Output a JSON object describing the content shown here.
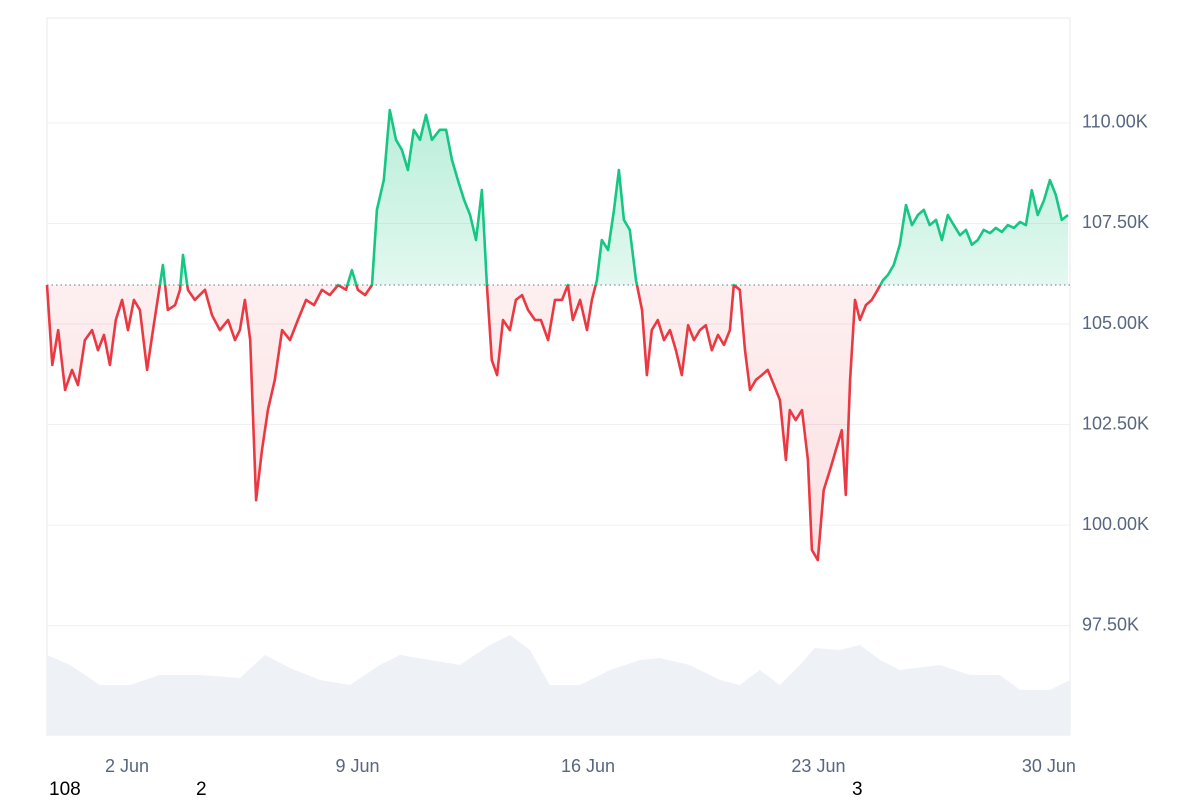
{
  "chart_data": {
    "type": "line",
    "x": [
      -0.43,
      -0.27,
      -0.09,
      0.12,
      0.33,
      0.51,
      0.72,
      0.94,
      1.12,
      1.3,
      1.48,
      1.66,
      1.85,
      2.03,
      2.21,
      2.39,
      2.61,
      2.79,
      3.0,
      3.09,
      3.24,
      3.46,
      3.61,
      3.7,
      3.85,
      4.06,
      4.37,
      4.58,
      4.82,
      5.07,
      5.28,
      5.43,
      5.58,
      5.74,
      5.92,
      6.1,
      6.28,
      6.49,
      6.71,
      6.95,
      7.19,
      7.44,
      7.68,
      7.92,
      8.16,
      8.41,
      8.65,
      8.83,
      9.01,
      9.23,
      9.44,
      9.59,
      9.8,
      9.98,
      10.17,
      10.35,
      10.53,
      10.71,
      10.9,
      11.08,
      11.26,
      11.5,
      11.69,
      11.87,
      12.05,
      12.24,
      12.42,
      12.6,
      12.78,
      12.93,
      13.08,
      13.24,
      13.42,
      13.63,
      13.81,
      14.0,
      14.18,
      14.39,
      14.57,
      14.79,
      15.0,
      15.21,
      15.39,
      15.54,
      15.76,
      15.97,
      16.12,
      16.27,
      16.42,
      16.61,
      16.79,
      16.94,
      17.09,
      17.27,
      17.46,
      17.64,
      17.79,
      17.94,
      18.12,
      18.31,
      18.49,
      18.67,
      18.85,
      19.04,
      19.22,
      19.4,
      19.58,
      19.76,
      19.95,
      20.13,
      20.31,
      20.43,
      20.61,
      20.77,
      20.92,
      21.1,
      21.28,
      21.46,
      21.65,
      21.83,
      22.01,
      22.13,
      22.31,
      22.5,
      22.68,
      22.8,
      22.98,
      23.16,
      23.35,
      23.53,
      23.71,
      23.83,
      23.96,
      24.11,
      24.26,
      24.44,
      24.62,
      24.8,
      24.96,
      25.11,
      25.29,
      25.47,
      25.66,
      25.84,
      26.02,
      26.2,
      26.38,
      26.57,
      26.75,
      26.93,
      27.11,
      27.3,
      27.48,
      27.66,
      27.84,
      28.02,
      28.21,
      28.39,
      28.57,
      28.75,
      28.94,
      29.12,
      29.3,
      29.48,
      29.66,
      29.85,
      30.03,
      30.21,
      30.39,
      30.58
    ],
    "values": [
      105970,
      103980,
      104850,
      103360,
      103860,
      103480,
      104600,
      104850,
      104350,
      104730,
      103980,
      105100,
      105600,
      104850,
      105600,
      105350,
      103860,
      104850,
      105970,
      106470,
      105350,
      105470,
      105850,
      106720,
      105850,
      105600,
      105850,
      105220,
      104850,
      105100,
      104600,
      104850,
      105600,
      104600,
      100620,
      101870,
      102860,
      103610,
      104850,
      104600,
      105100,
      105600,
      105470,
      105850,
      105720,
      105970,
      105850,
      106340,
      105850,
      105720,
      105970,
      107840,
      108580,
      110320,
      109580,
      109330,
      108830,
      109830,
      109580,
      110200,
      109580,
      109830,
      109830,
      109080,
      108580,
      108080,
      107710,
      107090,
      108330,
      105970,
      104100,
      103730,
      105100,
      104850,
      105600,
      105720,
      105350,
      105100,
      105100,
      104600,
      105600,
      105600,
      105970,
      105100,
      105600,
      104850,
      105600,
      106090,
      107090,
      106840,
      107840,
      108830,
      107590,
      107340,
      106090,
      105350,
      103730,
      104850,
      105100,
      104600,
      104850,
      104350,
      103730,
      104970,
      104600,
      104850,
      104970,
      104350,
      104730,
      104480,
      104850,
      105970,
      105850,
      104350,
      103360,
      103610,
      103730,
      103860,
      103480,
      103110,
      101620,
      102860,
      102610,
      102860,
      101620,
      99380,
      99130,
      100870,
      101370,
      101870,
      102360,
      100750,
      103610,
      105600,
      105100,
      105470,
      105600,
      105850,
      106090,
      106220,
      106470,
      106970,
      107960,
      107460,
      107710,
      107840,
      107460,
      107590,
      107090,
      107710,
      107460,
      107210,
      107340,
      106970,
      107090,
      107340,
      107260,
      107390,
      107290,
      107460,
      107390,
      107540,
      107460,
      108330,
      107710,
      108080,
      108580,
      108210,
      107590,
      107710
    ],
    "baseline": 105970,
    "up_color": "#16c784",
    "down_color": "#ea3943",
    "volume": {
      "color": "#eef1f5",
      "x": [
        -0.43,
        0.27,
        1.18,
        2.09,
        3.0,
        4.22,
        5.43,
        6.19,
        6.95,
        7.86,
        8.77,
        9.68,
        10.29,
        11.2,
        12.11,
        13.02,
        13.63,
        14.24,
        14.84,
        15.76,
        16.67,
        17.58,
        18.18,
        19.09,
        20.01,
        20.61,
        21.22,
        21.83,
        22.44,
        22.89,
        23.65,
        24.26,
        24.87,
        25.47,
        26.69,
        27.6,
        28.51,
        29.12,
        30.03,
        30.64
      ],
      "values": [
        80,
        70,
        50,
        50,
        60,
        60,
        57,
        80,
        67,
        55,
        50,
        70,
        80,
        75,
        70,
        90,
        100,
        85,
        50,
        50,
        65,
        75,
        77,
        70,
        55,
        50,
        65,
        50,
        70,
        87,
        85,
        90,
        75,
        65,
        70,
        60,
        60,
        45,
        45,
        55
      ]
    },
    "xlim": [
      -0.43,
      30.64
    ],
    "xticks": [
      {
        "value": 2,
        "label": "2 Jun"
      },
      {
        "value": 9,
        "label": "9 Jun"
      },
      {
        "value": 16,
        "label": "16 Jun"
      },
      {
        "value": 23,
        "label": "23 Jun"
      },
      {
        "value": 30,
        "label": "30 Jun"
      }
    ],
    "ylim": [
      94780,
      112610
    ],
    "yticks": [
      {
        "value": 97500,
        "label": "97.50K"
      },
      {
        "value": 100000,
        "label": "100.00K"
      },
      {
        "value": 102500,
        "label": "102.50K"
      },
      {
        "value": 105000,
        "label": "105.00K"
      },
      {
        "value": 107500,
        "label": "107.50K"
      },
      {
        "value": 110000,
        "label": "110.00K"
      }
    ],
    "grid": true,
    "footer_labels": [
      "108",
      "2",
      "3"
    ]
  }
}
